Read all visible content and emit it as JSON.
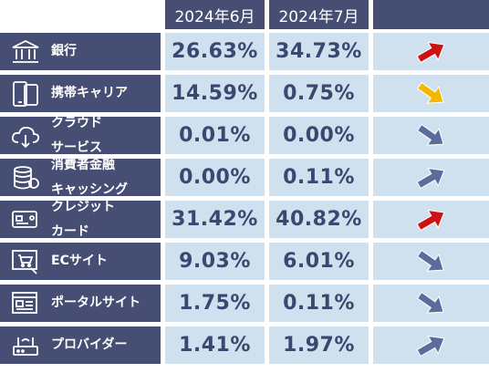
{
  "header": {
    "col1": "2024年6月",
    "col2": "2024年7月"
  },
  "rows": [
    {
      "label": "銀行",
      "icon": "bank-icon",
      "jun": "26.63%",
      "jul": "34.73%",
      "trend": "up",
      "trend_color": "#cc1111"
    },
    {
      "label": "携帯キャリア",
      "icon": "smartphone-icon",
      "jun": "14.59%",
      "jul": "0.75%",
      "trend": "down",
      "trend_color": "#f5b800"
    },
    {
      "label": "クラウド\nサービス",
      "icon": "cloud-icon",
      "jun": "0.01%",
      "jul": "0.00%",
      "trend": "down",
      "trend_color": "#5b6b9c"
    },
    {
      "label": "消費者金融\nキャッシング",
      "icon": "coins-icon",
      "jun": "0.00%",
      "jul": "0.11%",
      "trend": "up",
      "trend_color": "#5b6b9c"
    },
    {
      "label": "クレジット\nカード",
      "icon": "credit-card-icon",
      "jun": "31.42%",
      "jul": "40.82%",
      "trend": "up",
      "trend_color": "#cc1111"
    },
    {
      "label": "ECサイト",
      "icon": "shopping-cart-icon",
      "jun": "9.03%",
      "jul": "6.01%",
      "trend": "down",
      "trend_color": "#5b6b9c"
    },
    {
      "label": "ポータルサイト",
      "icon": "web-portal-icon",
      "jun": "1.75%",
      "jul": "0.11%",
      "trend": "down",
      "trend_color": "#5b6b9c"
    },
    {
      "label": "プロバイダー",
      "icon": "router-icon",
      "jun": "1.41%",
      "jul": "1.97%",
      "trend": "up",
      "trend_color": "#5b6b9c"
    }
  ]
}
